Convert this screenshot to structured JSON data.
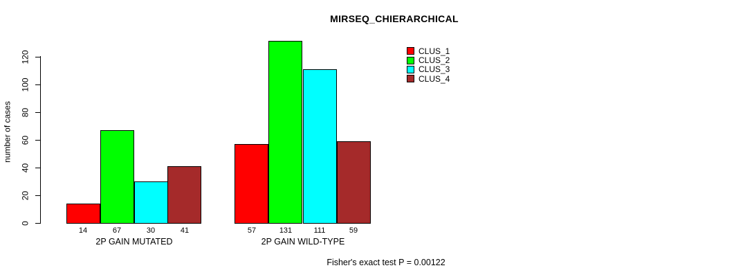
{
  "chart_data": {
    "type": "bar",
    "title": "MIRSEQ_CHIERARCHICAL",
    "ylabel": "number of cases",
    "xlabel": "",
    "yticks": [
      0,
      20,
      40,
      60,
      80,
      100,
      120
    ],
    "ylim": [
      0,
      131
    ],
    "grid": false,
    "legend_position": "top-right",
    "categories": [
      "2P GAIN MUTATED",
      "2P GAIN WILD-TYPE"
    ],
    "series": [
      {
        "name": "CLUS_1",
        "color": "#FF0000",
        "values": [
          14,
          57
        ]
      },
      {
        "name": "CLUS_2",
        "color": "#00FF00",
        "values": [
          67,
          131
        ]
      },
      {
        "name": "CLUS_3",
        "color": "#00FFFF",
        "values": [
          30,
          111
        ]
      },
      {
        "name": "CLUS_4",
        "color": "#A52A2A",
        "values": [
          41,
          59
        ]
      }
    ],
    "bar_value_labels": [
      [
        14,
        67,
        30,
        41
      ],
      [
        57,
        131,
        111,
        59
      ]
    ],
    "annotation": "Fisher's exact test P = 0.00122"
  },
  "colors": {
    "background": "#FFFFFF",
    "text": "#000000",
    "axis": "#000000",
    "bar_border": "#000000"
  }
}
